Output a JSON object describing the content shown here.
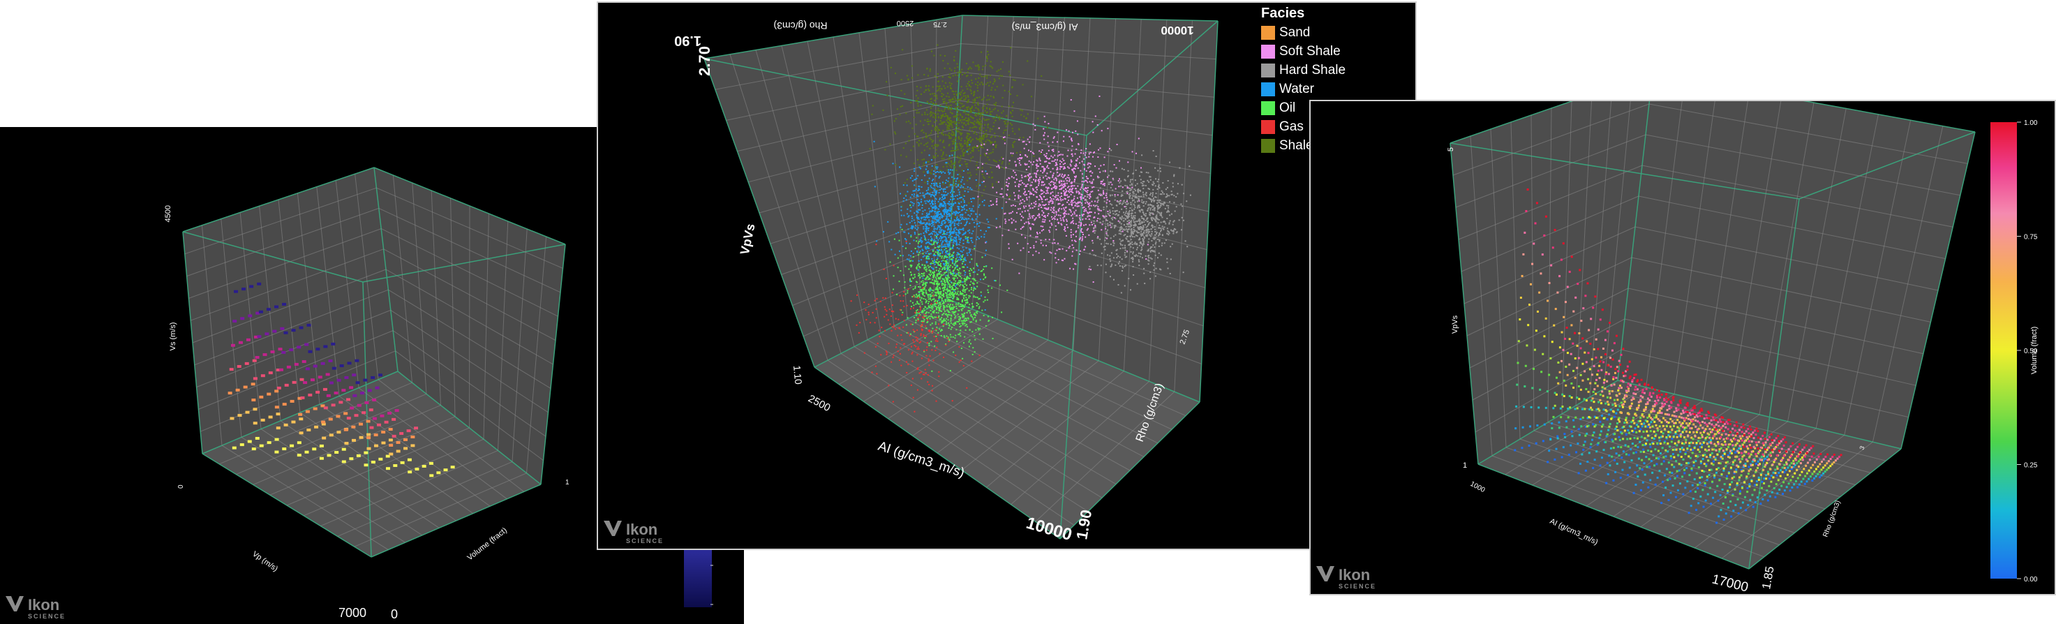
{
  "brand": {
    "name": "Ikon",
    "sub": "SCIENCE"
  },
  "chart_data": [
    {
      "type": "scatter",
      "subtype": "3d",
      "xlabel": "Vp (m/s)",
      "ylabel": "Vs (m/s)",
      "zlabel": "Volume (fract)",
      "x_ticks": [
        "7000"
      ],
      "y_ticks": [
        "4500",
        "0"
      ],
      "z_ticks": [
        "0",
        "1"
      ],
      "series": [
        {
          "color": "#f5f55a",
          "values": [
            [
              2700,
              320,
              0.05
            ],
            [
              3000,
              340,
              0.1
            ],
            [
              3400,
              360,
              0.15
            ],
            [
              3800,
              380,
              0.2
            ],
            [
              4200,
              400,
              0.25
            ],
            [
              4600,
              420,
              0.3
            ],
            [
              5000,
              440,
              0.35
            ],
            [
              5400,
              460,
              0.4
            ],
            [
              5800,
              480,
              0.45
            ],
            [
              6200,
              500,
              0.5
            ]
          ]
        },
        {
          "color": "#f8c258",
          "values": [
            [
              2700,
              900,
              0.05
            ],
            [
              3100,
              880,
              0.1
            ],
            [
              3500,
              860,
              0.15
            ],
            [
              3900,
              840,
              0.2
            ],
            [
              4300,
              820,
              0.25
            ],
            [
              4700,
              800,
              0.3
            ],
            [
              5100,
              780,
              0.35
            ],
            [
              5500,
              760,
              0.4
            ]
          ]
        },
        {
          "color": "#f59050",
          "values": [
            [
              2700,
              1400,
              0.05
            ],
            [
              3100,
              1330,
              0.1
            ],
            [
              3500,
              1260,
              0.15
            ],
            [
              3900,
              1190,
              0.2
            ],
            [
              4300,
              1120,
              0.25
            ],
            [
              4700,
              1050,
              0.3
            ],
            [
              5100,
              980,
              0.35
            ],
            [
              5500,
              920,
              0.4
            ]
          ]
        },
        {
          "color": "#ea4e74",
          "values": [
            [
              2800,
              1900,
              0.05
            ],
            [
              3200,
              1780,
              0.1
            ],
            [
              3600,
              1660,
              0.15
            ],
            [
              4000,
              1540,
              0.2
            ],
            [
              4400,
              1420,
              0.25
            ],
            [
              4800,
              1300,
              0.3
            ],
            [
              5200,
              1200,
              0.35
            ],
            [
              5600,
              1120,
              0.4
            ]
          ]
        },
        {
          "color": "#c0238c",
          "values": [
            [
              2900,
              2400,
              0.05
            ],
            [
              3300,
              2220,
              0.1
            ],
            [
              3700,
              2040,
              0.15
            ],
            [
              4100,
              1860,
              0.2
            ],
            [
              4500,
              1680,
              0.25
            ],
            [
              4900,
              1520,
              0.3
            ],
            [
              5300,
              1400,
              0.35
            ]
          ]
        },
        {
          "color": "#7a1aa0",
          "values": [
            [
              3000,
              2900,
              0.05
            ],
            [
              3400,
              2650,
              0.1
            ],
            [
              3800,
              2400,
              0.15
            ],
            [
              4200,
              2150,
              0.2
            ],
            [
              4600,
              1950,
              0.25
            ],
            [
              5000,
              1780,
              0.3
            ]
          ]
        },
        {
          "color": "#2a1e8c",
          "values": [
            [
              3100,
              3500,
              0.05
            ],
            [
              3500,
              3150,
              0.1
            ],
            [
              3900,
              2800,
              0.15
            ],
            [
              4300,
              2500,
              0.2
            ],
            [
              4700,
              2250,
              0.25
            ],
            [
              5100,
              2050,
              0.3
            ]
          ]
        }
      ]
    },
    {
      "type": "scatter",
      "subtype": "3d",
      "xlabel": "AI (g/cm3_m/s)",
      "ylabel": "VpVs",
      "zlabel": "Rho (g/cm3)",
      "top_labels": [
        "AI (g/cm3_m/s)",
        "Rho (g/cm3)"
      ],
      "x_ticks": [
        "2500",
        "10000"
      ],
      "y_ticks": [
        "1.10",
        "2.70"
      ],
      "z_ticks": [
        "1.90",
        "2.75"
      ],
      "top_ticks": [
        "1.90",
        "2500",
        "2.75",
        "10000"
      ],
      "legend_title": "Facies",
      "legend": [
        {
          "name": "Sand",
          "color": "#f39a3a"
        },
        {
          "name": "Soft Shale",
          "color": "#ef8ff0"
        },
        {
          "name": "Hard Shale",
          "color": "#9a9a9a"
        },
        {
          "name": "Water",
          "color": "#1c9cf0"
        },
        {
          "name": "Oil",
          "color": "#55ee55"
        },
        {
          "name": "Gas",
          "color": "#ea3232"
        },
        {
          "name": "Shale",
          "color": "#5a7a14"
        }
      ],
      "clusters": [
        {
          "facies": "Shale",
          "ai": 5200,
          "vpvs": 2.35,
          "rho": 2.35,
          "spread": [
            500,
            0.15,
            0.08
          ]
        },
        {
          "facies": "Soft Shale",
          "ai": 7200,
          "vpvs": 2.05,
          "rho": 2.45,
          "spread": [
            700,
            0.12,
            0.08
          ]
        },
        {
          "facies": "Hard Shale",
          "ai": 8900,
          "vpvs": 1.95,
          "rho": 2.55,
          "spread": [
            500,
            0.1,
            0.06
          ]
        },
        {
          "facies": "Water",
          "ai": 5400,
          "vpvs": 1.95,
          "rho": 2.2,
          "spread": [
            350,
            0.12,
            0.06
          ]
        },
        {
          "facies": "Oil",
          "ai": 5600,
          "vpvs": 1.65,
          "rho": 2.15,
          "spread": [
            400,
            0.1,
            0.06
          ]
        },
        {
          "facies": "Gas",
          "ai": 5000,
          "vpvs": 1.45,
          "rho": 2.05,
          "spread": [
            500,
            0.12,
            0.07
          ]
        }
      ]
    },
    {
      "type": "scatter",
      "subtype": "3d",
      "xlabel": "AI (g/cm3_m/s)",
      "ylabel": "VpVs",
      "zlabel": "Rho (g/cm3)",
      "x_ticks": [
        "1000",
        "17000"
      ],
      "y_ticks": [
        "1",
        "5"
      ],
      "z_ticks": [
        "1.85",
        "3"
      ],
      "colorbar_label": "Volume (fract)",
      "colorbar_ticks": [
        "1.00",
        "0.75",
        "0.50",
        "0.25",
        "0.00"
      ],
      "colorbar_range": [
        0,
        1
      ],
      "sheets": [
        {
          "ai": 2500,
          "peak_vpvs": 4.3
        },
        {
          "ai": 4400,
          "peak_vpvs": 2.7
        },
        {
          "ai": 6200,
          "peak_vpvs": 2.4
        },
        {
          "ai": 7800,
          "peak_vpvs": 2.3
        },
        {
          "ai": 9400,
          "peak_vpvs": 2.2
        },
        {
          "ai": 11000,
          "peak_vpvs": 2.1
        },
        {
          "ai": 12600,
          "peak_vpvs": 2.0
        },
        {
          "ai": 14200,
          "peak_vpvs": 1.9
        }
      ]
    }
  ]
}
